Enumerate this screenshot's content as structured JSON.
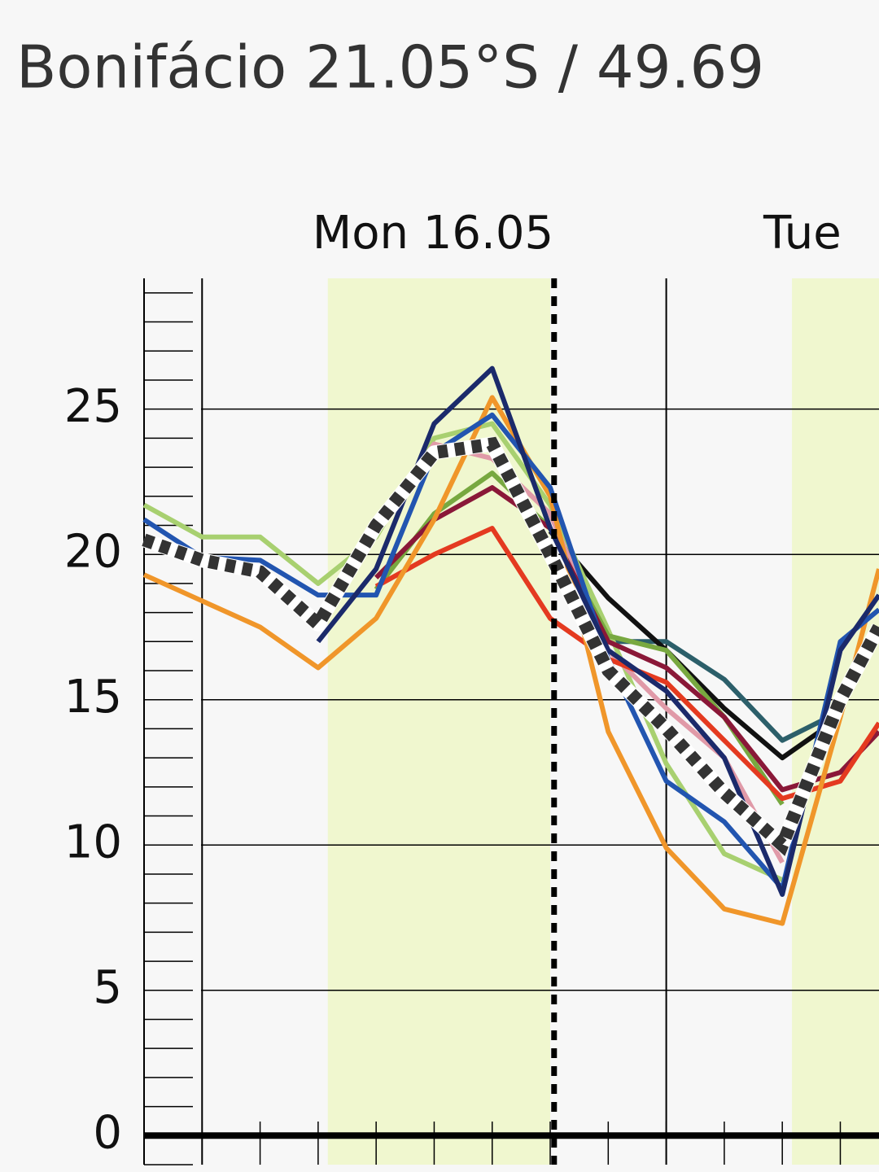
{
  "chart_data": {
    "type": "line",
    "title": "Bonifácio  21.05°S / 49.69",
    "days": [
      "Mon 16.05",
      "Tue"
    ],
    "x": [
      -3,
      0,
      3,
      6,
      9,
      12,
      15,
      18,
      21,
      24,
      27,
      30,
      33,
      35
    ],
    "xlim": [
      -3,
      35
    ],
    "xticks": [
      0,
      3,
      6,
      9,
      12,
      15,
      18,
      21,
      24,
      27,
      30,
      33
    ],
    "ylim": [
      -1,
      29.5
    ],
    "yticks": [
      0,
      5,
      10,
      15,
      20,
      25
    ],
    "grid": true,
    "daylight": [
      [
        6.5,
        18
      ],
      [
        30.5,
        35
      ]
    ],
    "now": 18.2,
    "series": [
      {
        "color": "#2c5f6a",
        "values": [
          null,
          null,
          null,
          null,
          null,
          null,
          null,
          null,
          17.0,
          17.0,
          15.7,
          13.6,
          14.6,
          null
        ]
      },
      {
        "color": "#111111",
        "values": [
          null,
          null,
          null,
          null,
          null,
          null,
          null,
          20.8,
          18.5,
          16.7,
          14.7,
          13.0,
          14.4,
          null
        ]
      },
      {
        "color": "#a8d070",
        "values": [
          21.7,
          20.6,
          20.6,
          19.0,
          20.6,
          24.0,
          24.5,
          21.7,
          17.4,
          12.8,
          9.7,
          8.8,
          null,
          null
        ]
      },
      {
        "color": "#78a840",
        "values": [
          null,
          null,
          null,
          null,
          18.8,
          21.4,
          22.8,
          20.9,
          17.2,
          16.7,
          14.4,
          11.4,
          null,
          null
        ]
      },
      {
        "color": "#e09aa8",
        "values": [
          null,
          null,
          null,
          null,
          21.0,
          23.8,
          23.3,
          21.4,
          16.7,
          14.7,
          13.0,
          9.4,
          null,
          null
        ]
      },
      {
        "color": "#8a1838",
        "values": [
          null,
          null,
          null,
          null,
          19.2,
          21.2,
          22.3,
          20.9,
          17.0,
          16.1,
          14.4,
          11.9,
          12.5,
          13.9
        ]
      },
      {
        "color": "#e43a20",
        "values": [
          null,
          null,
          null,
          null,
          18.9,
          20.0,
          20.9,
          17.8,
          16.4,
          15.6,
          13.6,
          11.6,
          12.2,
          14.2
        ]
      },
      {
        "color": "#f0962a",
        "values": [
          19.3,
          18.4,
          17.5,
          16.1,
          17.8,
          21.2,
          25.4,
          22.0,
          13.9,
          9.9,
          7.8,
          7.3,
          14.4,
          19.5
        ]
      },
      {
        "color": "#2255b0",
        "values": [
          21.2,
          19.9,
          19.8,
          18.6,
          18.6,
          23.5,
          24.8,
          22.3,
          16.4,
          12.2,
          10.8,
          8.5,
          17.0,
          18.1
        ]
      },
      {
        "color": "#1b2a6b",
        "values": [
          null,
          null,
          null,
          17.0,
          19.5,
          24.5,
          26.4,
          20.9,
          16.7,
          15.3,
          13.0,
          8.3,
          16.7,
          18.6
        ]
      },
      {
        "color": "#333333",
        "dashed": true,
        "values": [
          20.5,
          19.8,
          19.4,
          17.6,
          21.0,
          23.5,
          23.8,
          20.0,
          16.0,
          14.0,
          11.8,
          10.0,
          15.0,
          17.5
        ]
      }
    ]
  }
}
